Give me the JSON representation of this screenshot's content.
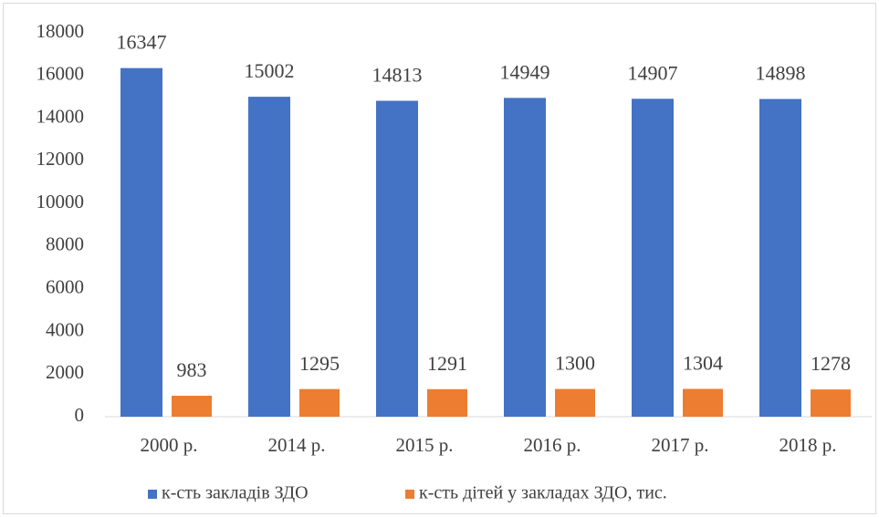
{
  "chart_data": {
    "type": "bar",
    "categories": [
      "2000 р.",
      "2014 р.",
      "2015 р.",
      "2016 р.",
      "2017 р.",
      "2018 р."
    ],
    "series": [
      {
        "name": "к-сть закладів ЗДО",
        "color": "#4472c4",
        "values": [
          16347,
          15002,
          14813,
          14949,
          14907,
          14898
        ]
      },
      {
        "name": "к-сть дітей у закладах ЗДО, тис.",
        "color": "#ed7d31",
        "values": [
          983,
          1295,
          1291,
          1300,
          1304,
          1278
        ]
      }
    ],
    "ylim": [
      0,
      18000
    ],
    "yticks": [
      0,
      2000,
      4000,
      6000,
      8000,
      10000,
      12000,
      14000,
      16000,
      18000
    ],
    "grid": false,
    "legend": "bottom"
  }
}
